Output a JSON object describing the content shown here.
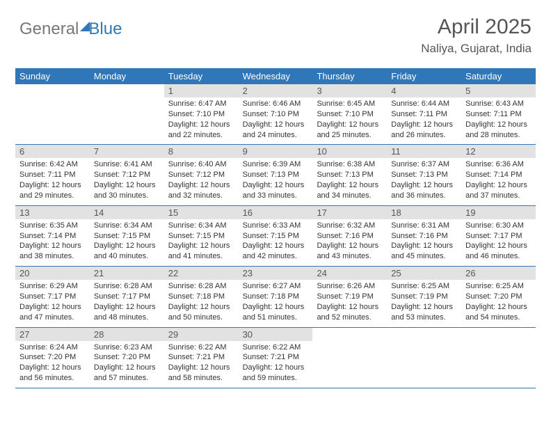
{
  "logo": {
    "text1": "General",
    "text2": "Blue"
  },
  "title": "April 2025",
  "location": "Naliya, Gujarat, India",
  "colors": {
    "header_bg": "#2f77b8",
    "daynum_bg": "#e2e2e2",
    "border": "#2f77b8"
  },
  "weekdays": [
    "Sunday",
    "Monday",
    "Tuesday",
    "Wednesday",
    "Thursday",
    "Friday",
    "Saturday"
  ],
  "weeks": [
    [
      {
        "n": "",
        "t": []
      },
      {
        "n": "",
        "t": []
      },
      {
        "n": "1",
        "t": [
          "Sunrise: 6:47 AM",
          "Sunset: 7:10 PM",
          "Daylight: 12 hours and 22 minutes."
        ]
      },
      {
        "n": "2",
        "t": [
          "Sunrise: 6:46 AM",
          "Sunset: 7:10 PM",
          "Daylight: 12 hours and 24 minutes."
        ]
      },
      {
        "n": "3",
        "t": [
          "Sunrise: 6:45 AM",
          "Sunset: 7:10 PM",
          "Daylight: 12 hours and 25 minutes."
        ]
      },
      {
        "n": "4",
        "t": [
          "Sunrise: 6:44 AM",
          "Sunset: 7:11 PM",
          "Daylight: 12 hours and 26 minutes."
        ]
      },
      {
        "n": "5",
        "t": [
          "Sunrise: 6:43 AM",
          "Sunset: 7:11 PM",
          "Daylight: 12 hours and 28 minutes."
        ]
      }
    ],
    [
      {
        "n": "6",
        "t": [
          "Sunrise: 6:42 AM",
          "Sunset: 7:11 PM",
          "Daylight: 12 hours and 29 minutes."
        ]
      },
      {
        "n": "7",
        "t": [
          "Sunrise: 6:41 AM",
          "Sunset: 7:12 PM",
          "Daylight: 12 hours and 30 minutes."
        ]
      },
      {
        "n": "8",
        "t": [
          "Sunrise: 6:40 AM",
          "Sunset: 7:12 PM",
          "Daylight: 12 hours and 32 minutes."
        ]
      },
      {
        "n": "9",
        "t": [
          "Sunrise: 6:39 AM",
          "Sunset: 7:13 PM",
          "Daylight: 12 hours and 33 minutes."
        ]
      },
      {
        "n": "10",
        "t": [
          "Sunrise: 6:38 AM",
          "Sunset: 7:13 PM",
          "Daylight: 12 hours and 34 minutes."
        ]
      },
      {
        "n": "11",
        "t": [
          "Sunrise: 6:37 AM",
          "Sunset: 7:13 PM",
          "Daylight: 12 hours and 36 minutes."
        ]
      },
      {
        "n": "12",
        "t": [
          "Sunrise: 6:36 AM",
          "Sunset: 7:14 PM",
          "Daylight: 12 hours and 37 minutes."
        ]
      }
    ],
    [
      {
        "n": "13",
        "t": [
          "Sunrise: 6:35 AM",
          "Sunset: 7:14 PM",
          "Daylight: 12 hours and 38 minutes."
        ]
      },
      {
        "n": "14",
        "t": [
          "Sunrise: 6:34 AM",
          "Sunset: 7:15 PM",
          "Daylight: 12 hours and 40 minutes."
        ]
      },
      {
        "n": "15",
        "t": [
          "Sunrise: 6:34 AM",
          "Sunset: 7:15 PM",
          "Daylight: 12 hours and 41 minutes."
        ]
      },
      {
        "n": "16",
        "t": [
          "Sunrise: 6:33 AM",
          "Sunset: 7:15 PM",
          "Daylight: 12 hours and 42 minutes."
        ]
      },
      {
        "n": "17",
        "t": [
          "Sunrise: 6:32 AM",
          "Sunset: 7:16 PM",
          "Daylight: 12 hours and 43 minutes."
        ]
      },
      {
        "n": "18",
        "t": [
          "Sunrise: 6:31 AM",
          "Sunset: 7:16 PM",
          "Daylight: 12 hours and 45 minutes."
        ]
      },
      {
        "n": "19",
        "t": [
          "Sunrise: 6:30 AM",
          "Sunset: 7:17 PM",
          "Daylight: 12 hours and 46 minutes."
        ]
      }
    ],
    [
      {
        "n": "20",
        "t": [
          "Sunrise: 6:29 AM",
          "Sunset: 7:17 PM",
          "Daylight: 12 hours and 47 minutes."
        ]
      },
      {
        "n": "21",
        "t": [
          "Sunrise: 6:28 AM",
          "Sunset: 7:17 PM",
          "Daylight: 12 hours and 48 minutes."
        ]
      },
      {
        "n": "22",
        "t": [
          "Sunrise: 6:28 AM",
          "Sunset: 7:18 PM",
          "Daylight: 12 hours and 50 minutes."
        ]
      },
      {
        "n": "23",
        "t": [
          "Sunrise: 6:27 AM",
          "Sunset: 7:18 PM",
          "Daylight: 12 hours and 51 minutes."
        ]
      },
      {
        "n": "24",
        "t": [
          "Sunrise: 6:26 AM",
          "Sunset: 7:19 PM",
          "Daylight: 12 hours and 52 minutes."
        ]
      },
      {
        "n": "25",
        "t": [
          "Sunrise: 6:25 AM",
          "Sunset: 7:19 PM",
          "Daylight: 12 hours and 53 minutes."
        ]
      },
      {
        "n": "26",
        "t": [
          "Sunrise: 6:25 AM",
          "Sunset: 7:20 PM",
          "Daylight: 12 hours and 54 minutes."
        ]
      }
    ],
    [
      {
        "n": "27",
        "t": [
          "Sunrise: 6:24 AM",
          "Sunset: 7:20 PM",
          "Daylight: 12 hours and 56 minutes."
        ]
      },
      {
        "n": "28",
        "t": [
          "Sunrise: 6:23 AM",
          "Sunset: 7:20 PM",
          "Daylight: 12 hours and 57 minutes."
        ]
      },
      {
        "n": "29",
        "t": [
          "Sunrise: 6:22 AM",
          "Sunset: 7:21 PM",
          "Daylight: 12 hours and 58 minutes."
        ]
      },
      {
        "n": "30",
        "t": [
          "Sunrise: 6:22 AM",
          "Sunset: 7:21 PM",
          "Daylight: 12 hours and 59 minutes."
        ]
      },
      {
        "n": "",
        "t": []
      },
      {
        "n": "",
        "t": []
      },
      {
        "n": "",
        "t": []
      }
    ]
  ]
}
